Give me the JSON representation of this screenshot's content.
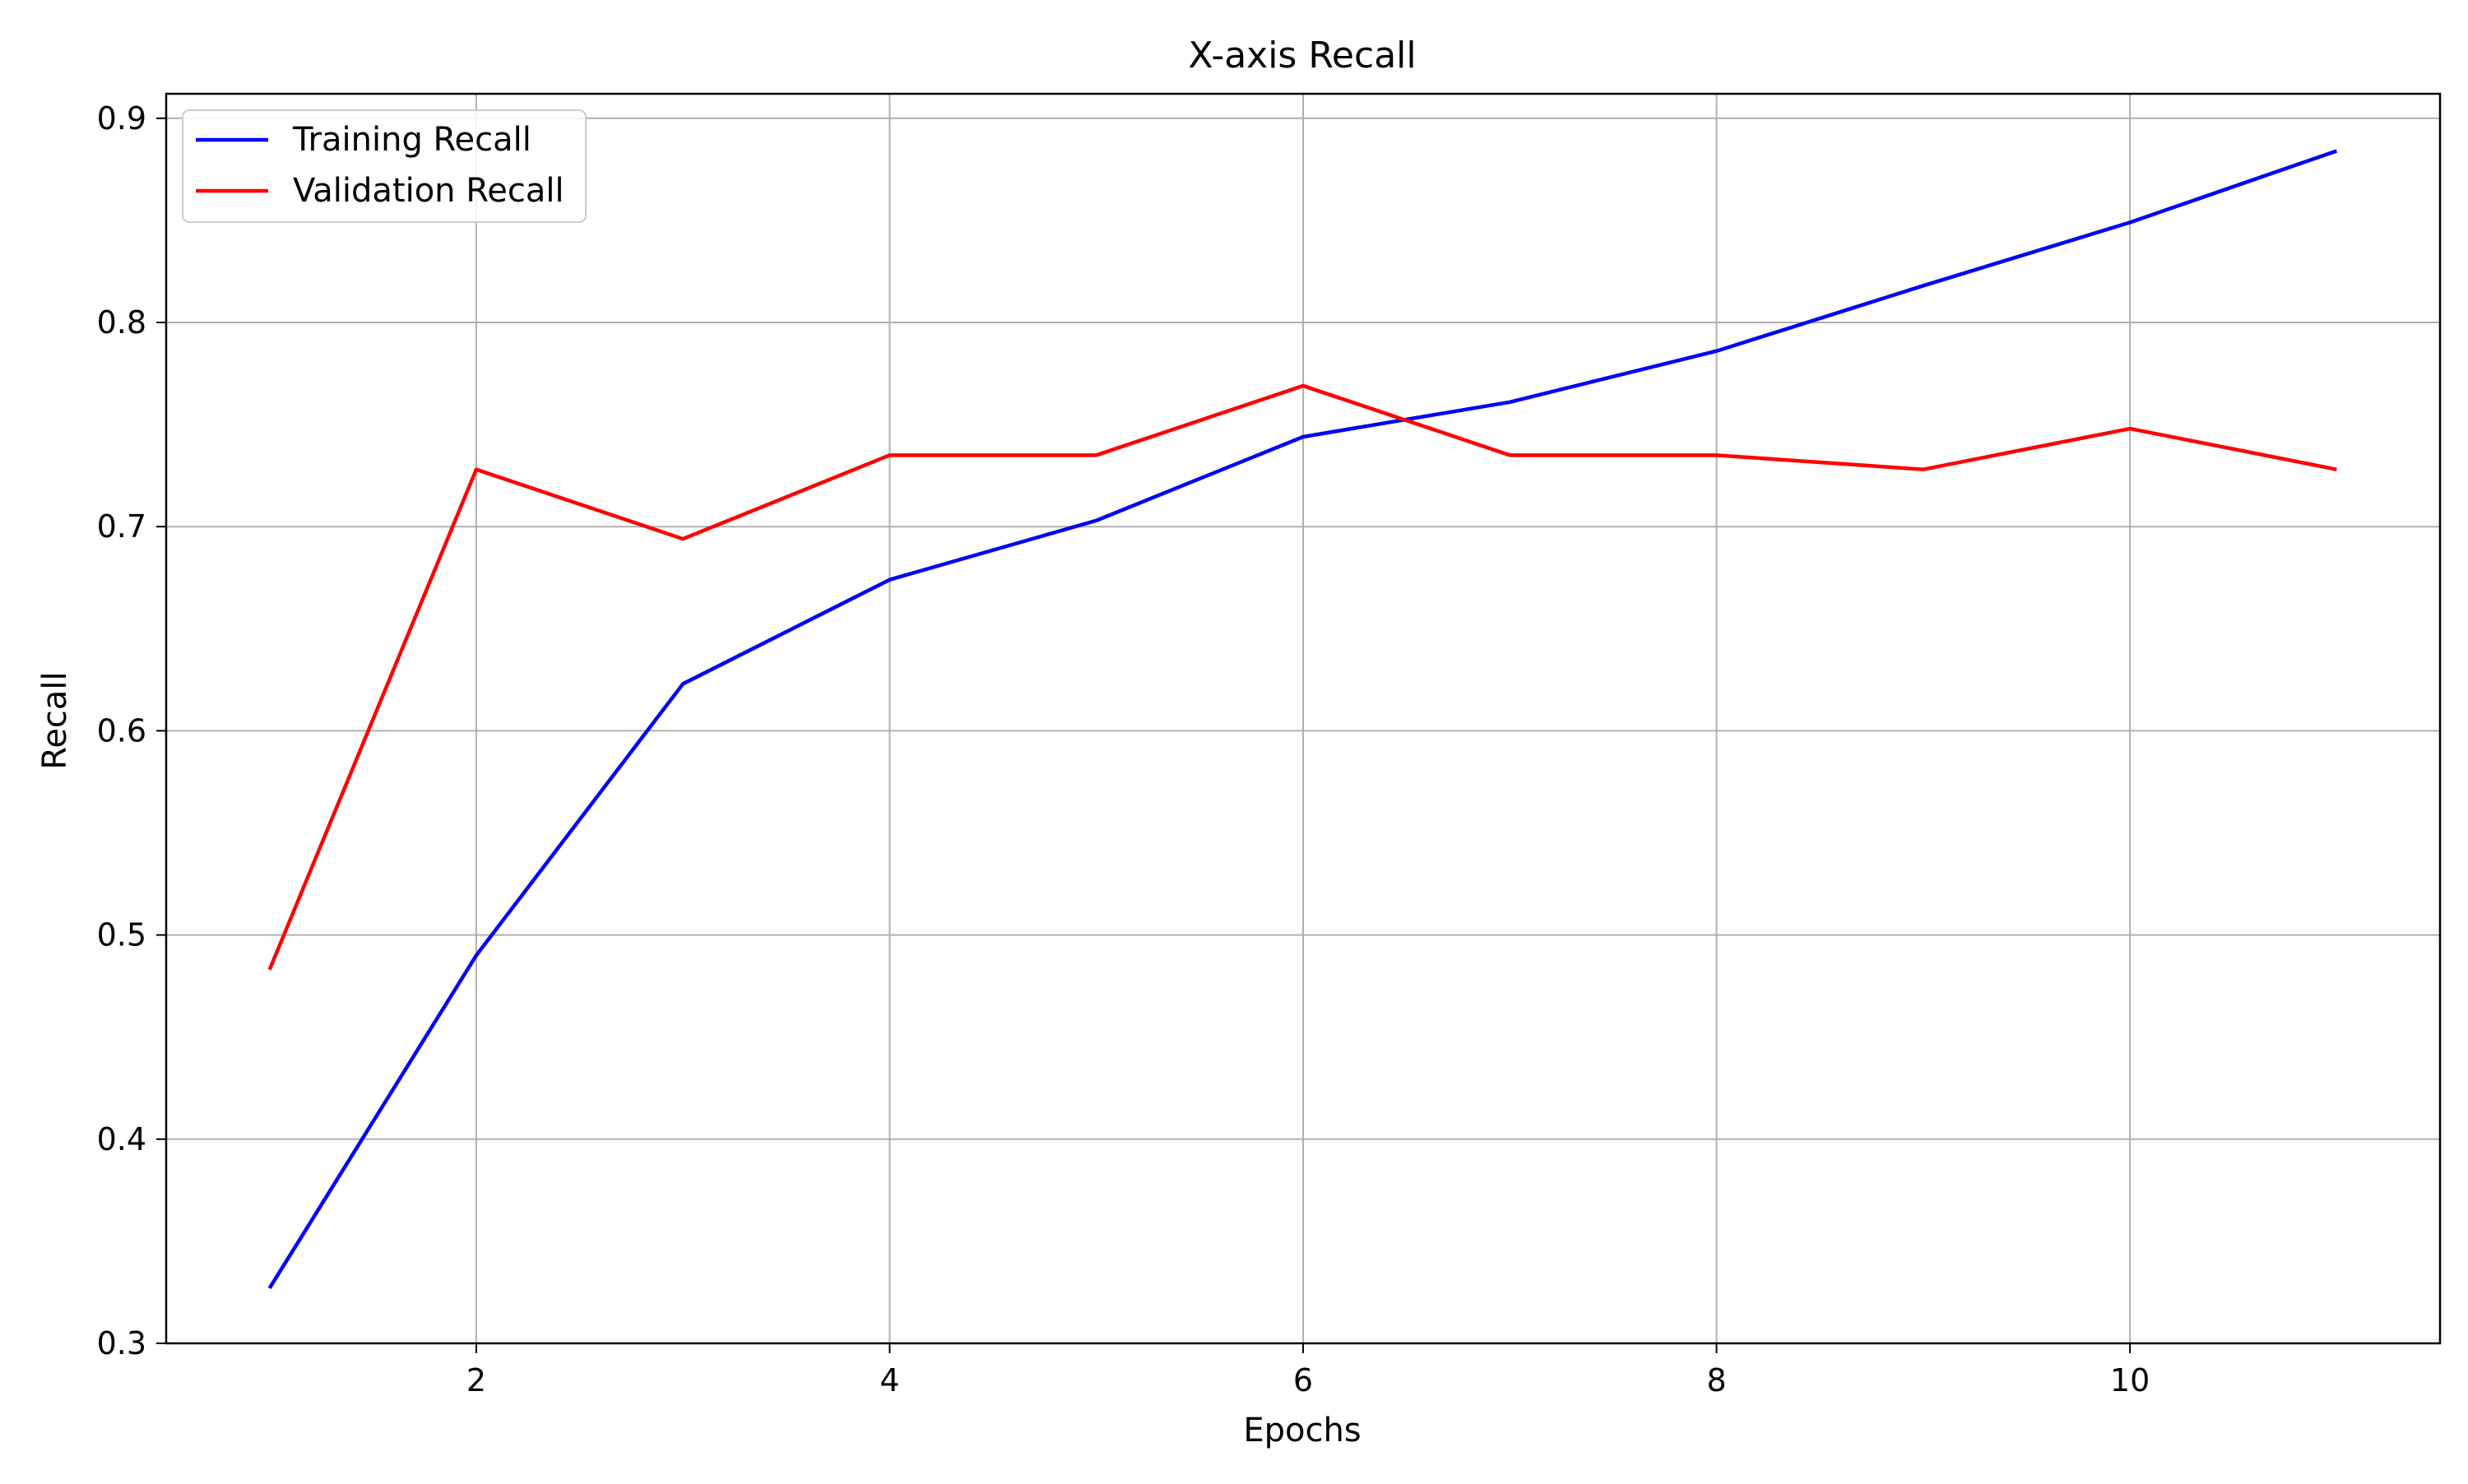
{
  "chart_data": {
    "type": "line",
    "title": "X-axis Recall",
    "xlabel": "Epochs",
    "ylabel": "Recall",
    "x": [
      1,
      2,
      3,
      4,
      5,
      6,
      7,
      8,
      9,
      10,
      11
    ],
    "series": [
      {
        "name": "Training Recall",
        "color": "#0000ff",
        "values": [
          0.327,
          0.49,
          0.623,
          0.674,
          0.703,
          0.744,
          0.761,
          0.786,
          0.818,
          0.849,
          0.884
        ]
      },
      {
        "name": "Validation Recall",
        "color": "#ff0000",
        "values": [
          0.483,
          0.728,
          0.694,
          0.735,
          0.735,
          0.769,
          0.735,
          0.735,
          0.728,
          0.748,
          0.728
        ]
      }
    ],
    "xlim": [
      0.5,
      11.5
    ],
    "ylim": [
      0.3,
      0.912
    ],
    "xticks": [
      2,
      4,
      6,
      8,
      10
    ],
    "xtick_labels": [
      "2",
      "4",
      "6",
      "8",
      "10"
    ],
    "yticks": [
      0.3,
      0.4,
      0.5,
      0.6,
      0.7,
      0.8,
      0.9
    ],
    "ytick_labels": [
      "0.3",
      "0.4",
      "0.5",
      "0.6",
      "0.7",
      "0.8",
      "0.9"
    ],
    "grid": true,
    "legend_position": "top-left"
  }
}
